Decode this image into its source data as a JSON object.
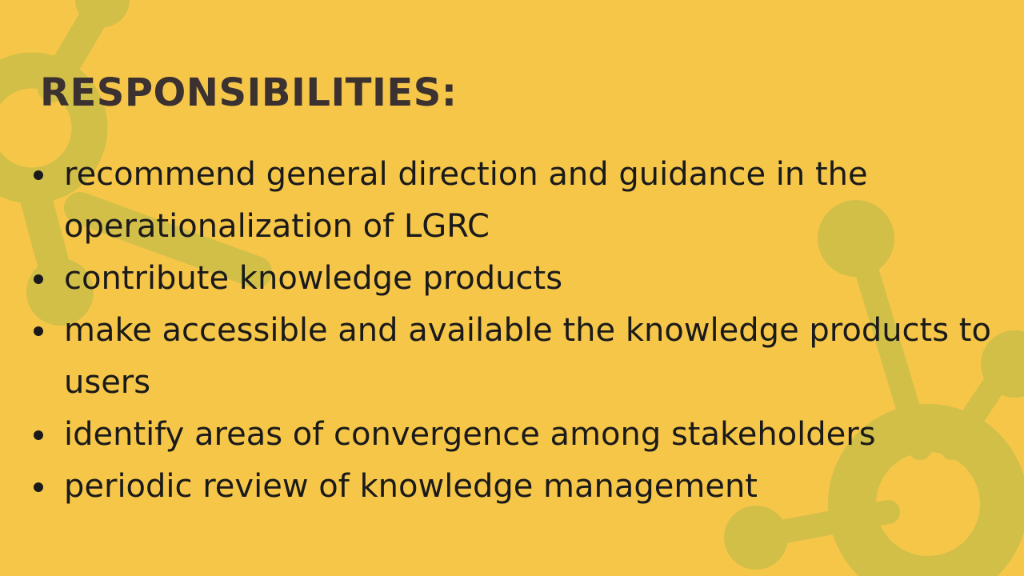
{
  "slide": {
    "title": "RESPONSIBILITIES:",
    "bullets": [
      "recommend general direction and guidance in the operationalization of LGRC",
      "contribute knowledge products",
      "make accessible and available the knowledge products to users",
      "identify areas of convergence among stakeholders",
      "periodic review of knowledge management"
    ]
  },
  "colors": {
    "background": "#f6c649",
    "decor": "#d2bf48",
    "title": "#3a3130",
    "text": "#1a1a1a"
  },
  "icons": {
    "background_decoration": "molecule-network-icon"
  }
}
